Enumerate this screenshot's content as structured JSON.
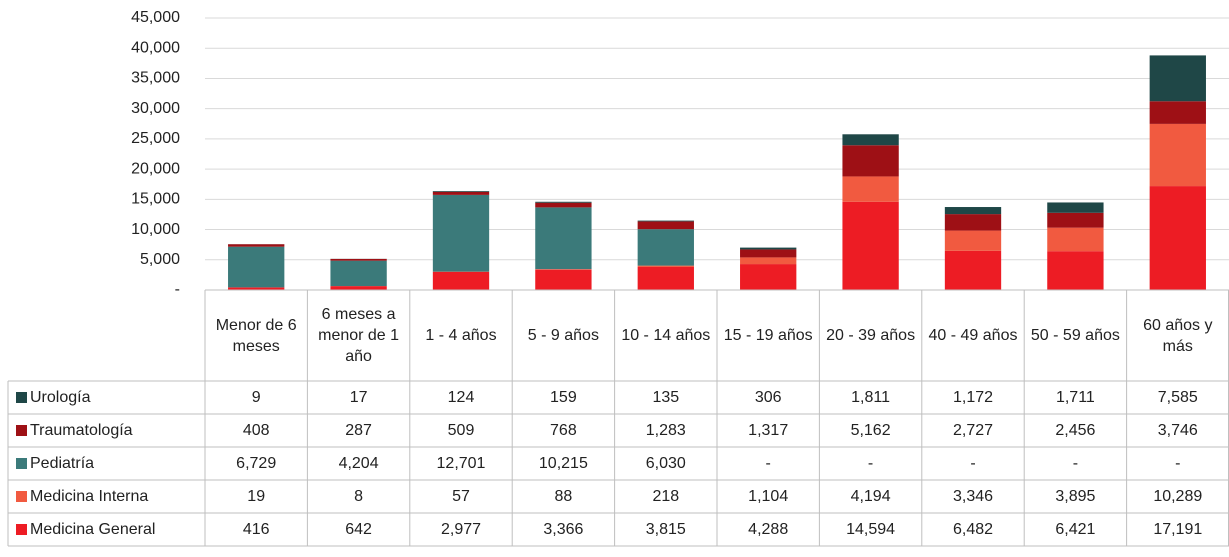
{
  "chart_data": {
    "type": "bar",
    "stacked": true,
    "categories": [
      "Menor de 6 meses",
      "6 meses a menor de 1 año",
      "1 - 4 años",
      "5 - 9 años",
      "10 - 14 años",
      "15 - 19 años",
      "20 - 39 años",
      "40 - 49 años",
      "50 - 59 años",
      "60 años y más"
    ],
    "series": [
      {
        "name": "Medicina General",
        "color": "#ed1c24",
        "values": [
          416,
          642,
          2977,
          3366,
          3815,
          4288,
          14594,
          6482,
          6421,
          17191
        ],
        "value_labels": [
          "416",
          "642",
          "2,977",
          "3,366",
          "3,815",
          "4,288",
          "14,594",
          "6,482",
          "6,421",
          "17,191"
        ]
      },
      {
        "name": "Medicina Interna",
        "color": "#f15a40",
        "values": [
          19,
          8,
          57,
          88,
          218,
          1104,
          4194,
          3346,
          3895,
          10289
        ],
        "value_labels": [
          "19",
          "8",
          "57",
          "88",
          "218",
          "1,104",
          "4,194",
          "3,346",
          "3,895",
          "10,289"
        ]
      },
      {
        "name": "Pediatría",
        "color": "#3b7a7a",
        "values": [
          6729,
          4204,
          12701,
          10215,
          6030,
          0,
          0,
          0,
          0,
          0
        ],
        "value_labels": [
          "6,729",
          "4,204",
          "12,701",
          "10,215",
          "6,030",
          "-",
          "-",
          "-",
          "-",
          "-"
        ]
      },
      {
        "name": "Traumatología",
        "color": "#9e1015",
        "values": [
          408,
          287,
          509,
          768,
          1283,
          1317,
          5162,
          2727,
          2456,
          3746
        ],
        "value_labels": [
          "408",
          "287",
          "509",
          "768",
          "1,283",
          "1,317",
          "5,162",
          "2,727",
          "2,456",
          "3,746"
        ]
      },
      {
        "name": "Urología",
        "color": "#1f4747",
        "values": [
          9,
          17,
          124,
          159,
          135,
          306,
          1811,
          1172,
          1711,
          7585
        ],
        "value_labels": [
          "9",
          "17",
          "124",
          "159",
          "135",
          "306",
          "1,811",
          "1,172",
          "1,711",
          "7,585"
        ]
      }
    ],
    "ylim": [
      0,
      45000
    ],
    "yticks": [
      {
        "value": 0,
        "label": "-"
      },
      {
        "value": 5000,
        "label": "5,000"
      },
      {
        "value": 10000,
        "label": "10,000"
      },
      {
        "value": 15000,
        "label": "15,000"
      },
      {
        "value": 20000,
        "label": "20,000"
      },
      {
        "value": 25000,
        "label": "25,000"
      },
      {
        "value": 30000,
        "label": "30,000"
      },
      {
        "value": 35000,
        "label": "35,000"
      },
      {
        "value": 40000,
        "label": "40,000"
      },
      {
        "value": 45000,
        "label": "45,000"
      }
    ],
    "grid": true
  }
}
